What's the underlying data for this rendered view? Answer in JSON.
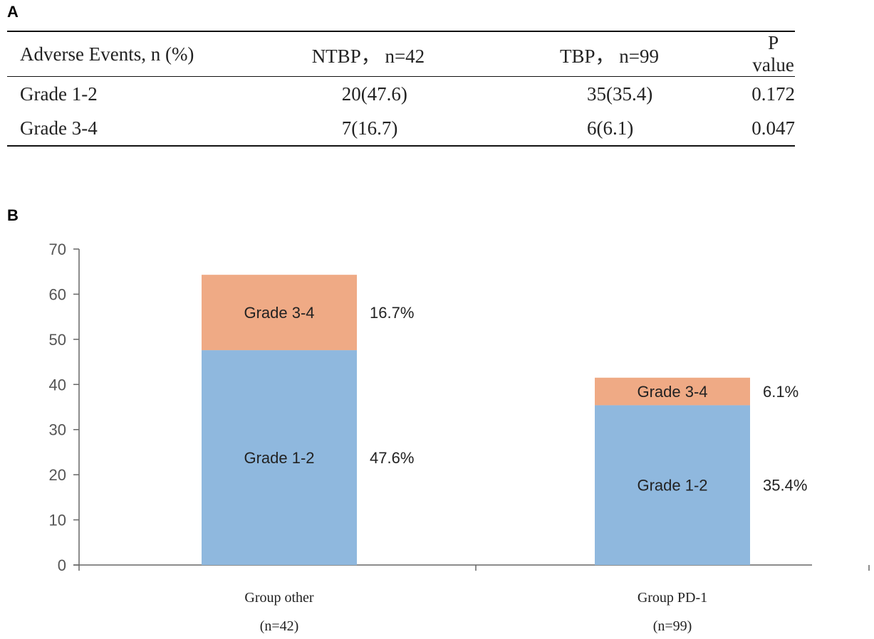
{
  "panels": {
    "a": "A",
    "b": "B"
  },
  "table": {
    "headers": [
      "Adverse Events, n (%)",
      "NTBP， n=42",
      "TBP， n=99",
      "P value"
    ],
    "rows": [
      [
        "Grade 1-2",
        "20(47.6)",
        "35(35.4)",
        "0.172"
      ],
      [
        "Grade 3-4",
        "7(16.7)",
        "6(6.1)",
        "0.047"
      ]
    ]
  },
  "chart_data": {
    "type": "bar",
    "stacked": true,
    "categories": [
      "Group other",
      "Group PD-1"
    ],
    "category_sublabels": [
      "(n=42)",
      "(n=99)"
    ],
    "series": [
      {
        "name": "Grade 1-2",
        "values": [
          47.6,
          35.4
        ],
        "color": "#8fb8de",
        "labels": [
          "47.6%",
          "35.4%"
        ]
      },
      {
        "name": "Grade 3-4",
        "values": [
          16.7,
          6.1
        ],
        "color": "#efaa85",
        "labels": [
          "16.7%",
          "6.1%"
        ]
      }
    ],
    "ylim": [
      0,
      70
    ],
    "yticks": [
      0,
      10,
      20,
      30,
      40,
      50,
      60,
      70
    ],
    "title": "",
    "xlabel": "",
    "ylabel": ""
  }
}
